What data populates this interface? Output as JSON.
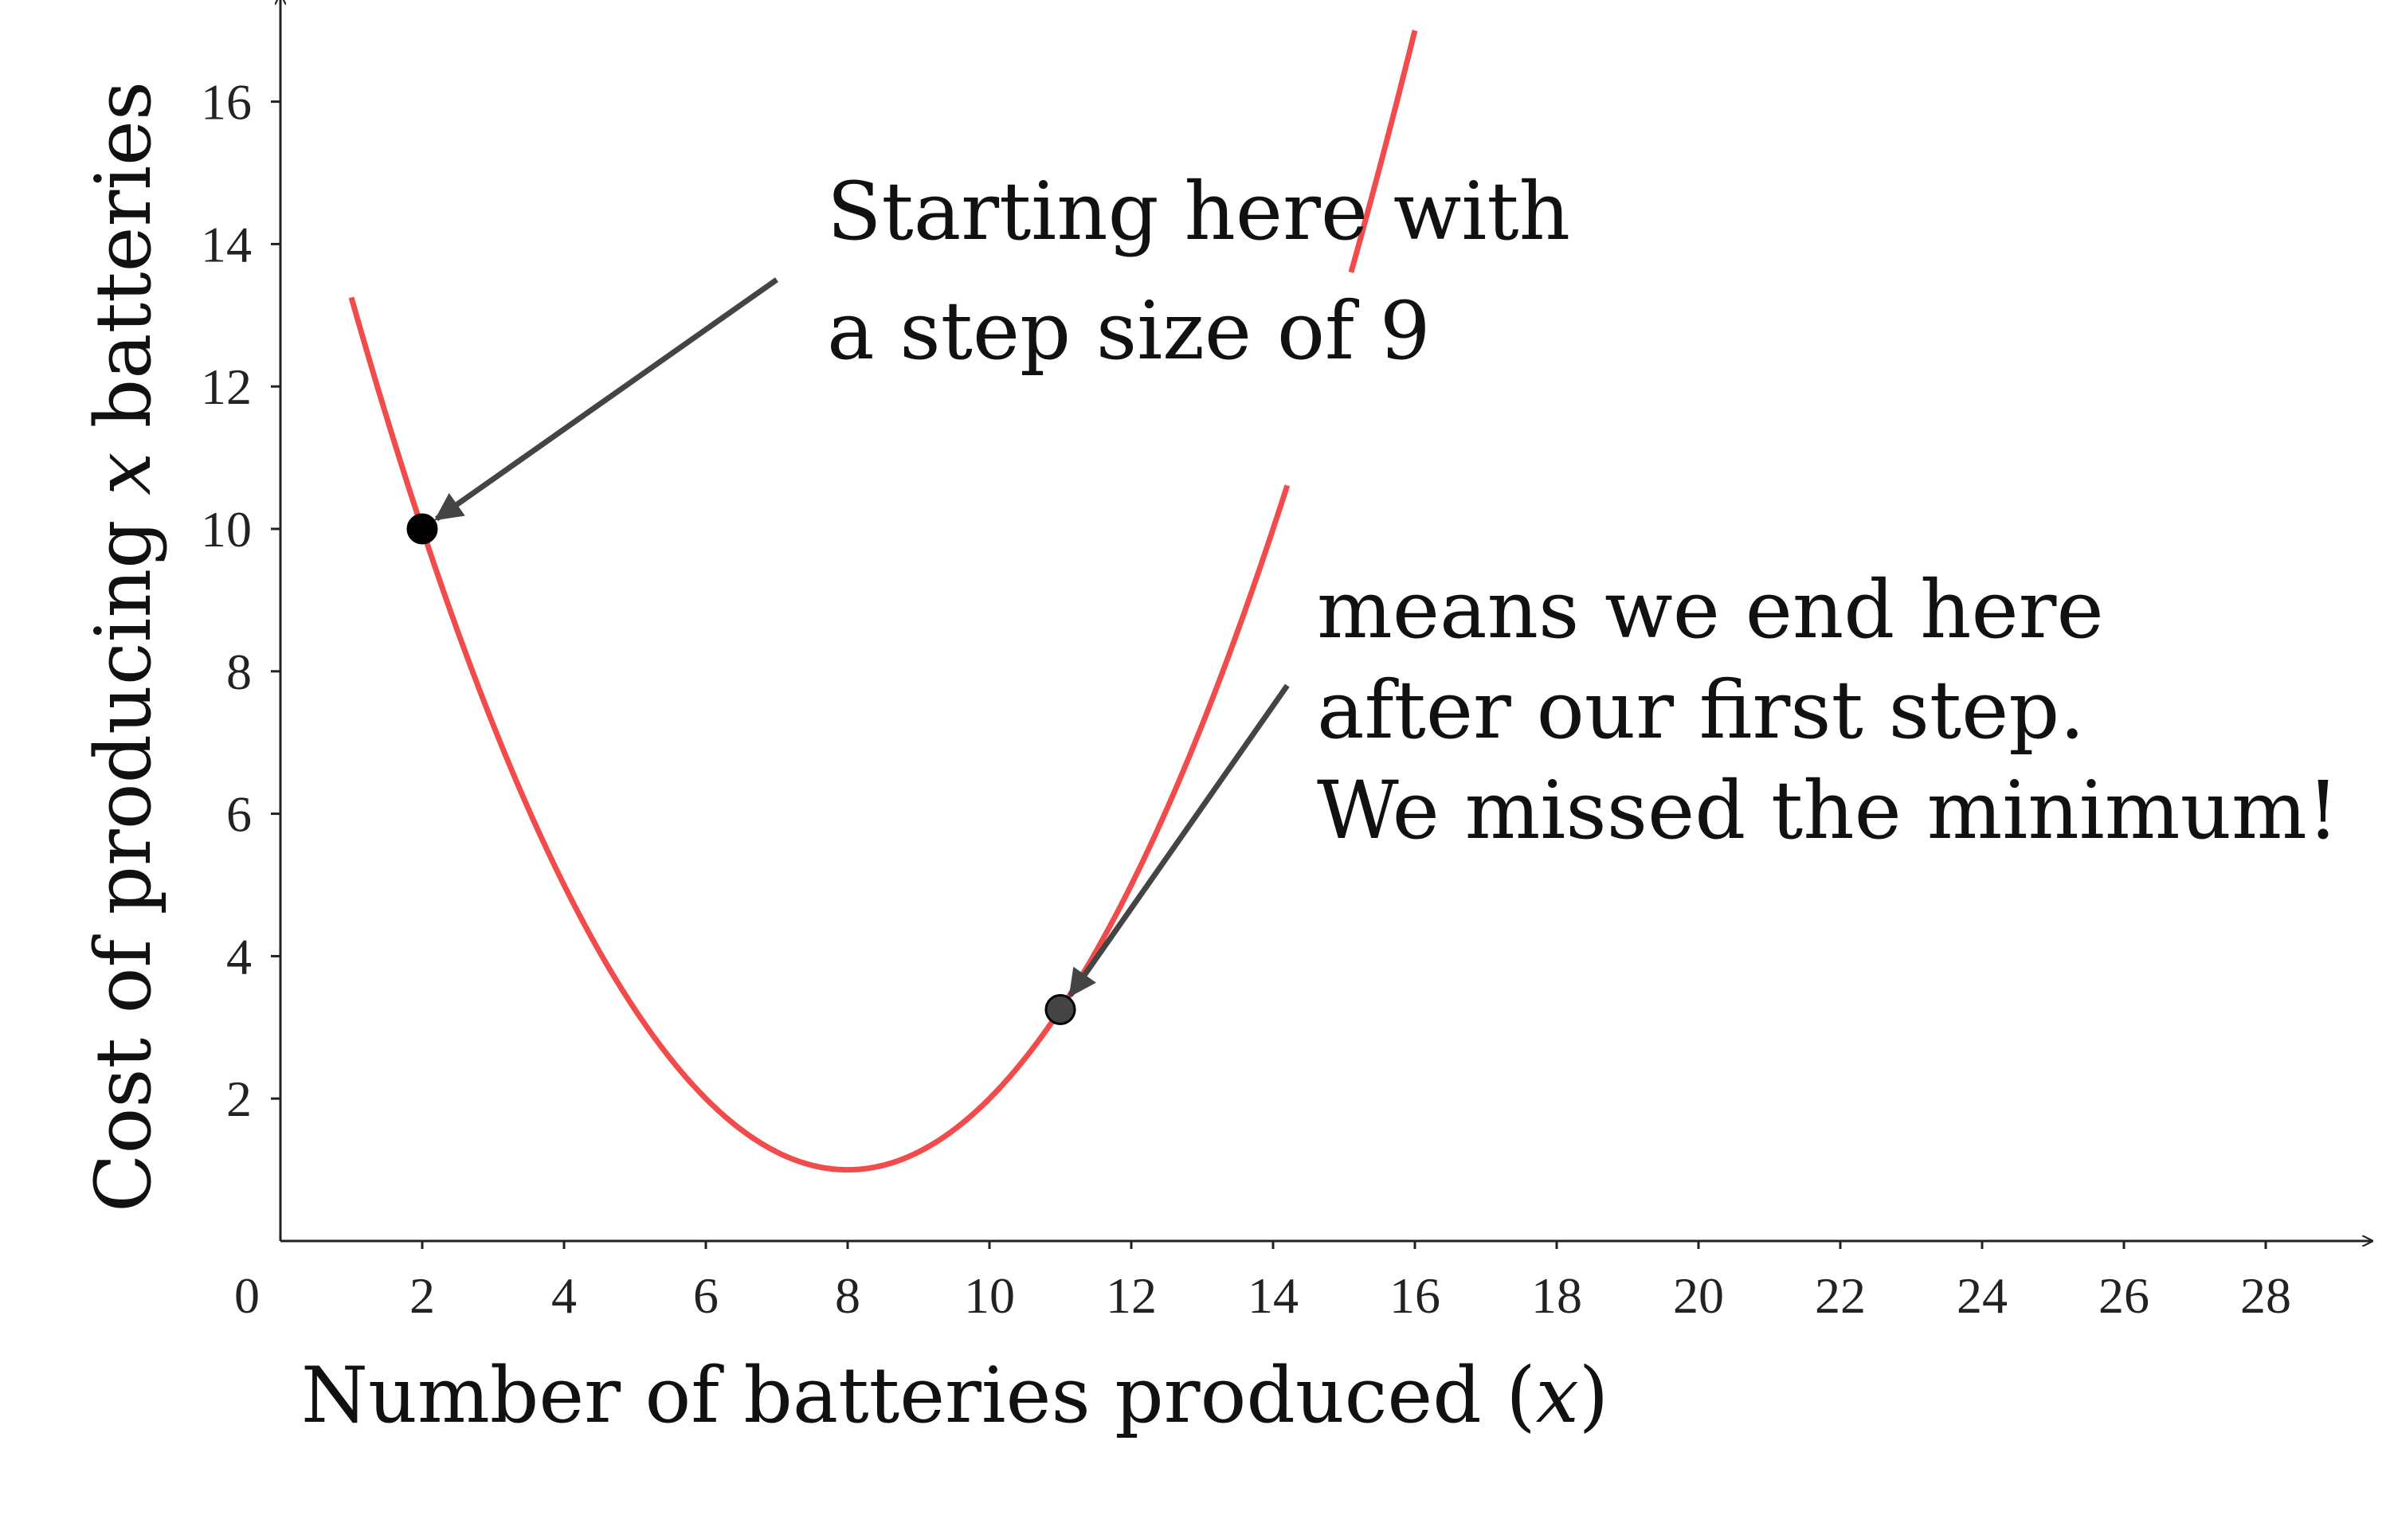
{
  "chart_data": {
    "type": "line",
    "title": "",
    "xlabel": "Number of batteries produced (x)",
    "xlabel_parts": {
      "before": "Number of batteries produced (",
      "var": "x",
      "after": ")"
    },
    "ylabel": "Cost of producing x batteries",
    "ylabel_parts": {
      "before": "Cost of producing ",
      "var": "x",
      "after": " batteries"
    },
    "xlim": [
      0,
      29.5
    ],
    "ylim": [
      0,
      17.5
    ],
    "x_ticks": [
      0,
      2,
      4,
      6,
      8,
      10,
      12,
      14,
      16,
      18,
      20,
      22,
      24,
      26,
      28
    ],
    "y_ticks": [
      2,
      4,
      6,
      8,
      10,
      12,
      14,
      16
    ],
    "grid": false,
    "series": [
      {
        "name": "cost curve",
        "function": "(x - 8)^2 / 4 + 1",
        "x_range": [
          1,
          16
        ],
        "visible_ranges": [
          [
            1,
            14.2
          ],
          [
            15.1,
            16
          ]
        ],
        "color": "#f24b4b"
      }
    ],
    "points": [
      {
        "name": "start-point",
        "x": 2,
        "y": 10,
        "color": "#000000"
      },
      {
        "name": "end-point",
        "x": 11,
        "y": 3.25,
        "color": "#444444"
      }
    ],
    "annotations": [
      {
        "name": "start-annotation",
        "lines": [
          "Starting here with",
          "a step size of 9"
        ],
        "arrow_from": [
          7,
          13.5
        ],
        "arrow_to": [
          2,
          10
        ]
      },
      {
        "name": "end-annotation",
        "lines": [
          "means we end here",
          "after our first step.",
          "We missed the minimum!"
        ],
        "arrow_from": [
          14.2,
          7.8
        ],
        "arrow_to": [
          11,
          3.25
        ]
      }
    ]
  },
  "colors": {
    "curve": "#f24b4b",
    "axis": "#222222",
    "arrow": "#444444",
    "start_point": "#000000",
    "end_point": "#444444"
  }
}
